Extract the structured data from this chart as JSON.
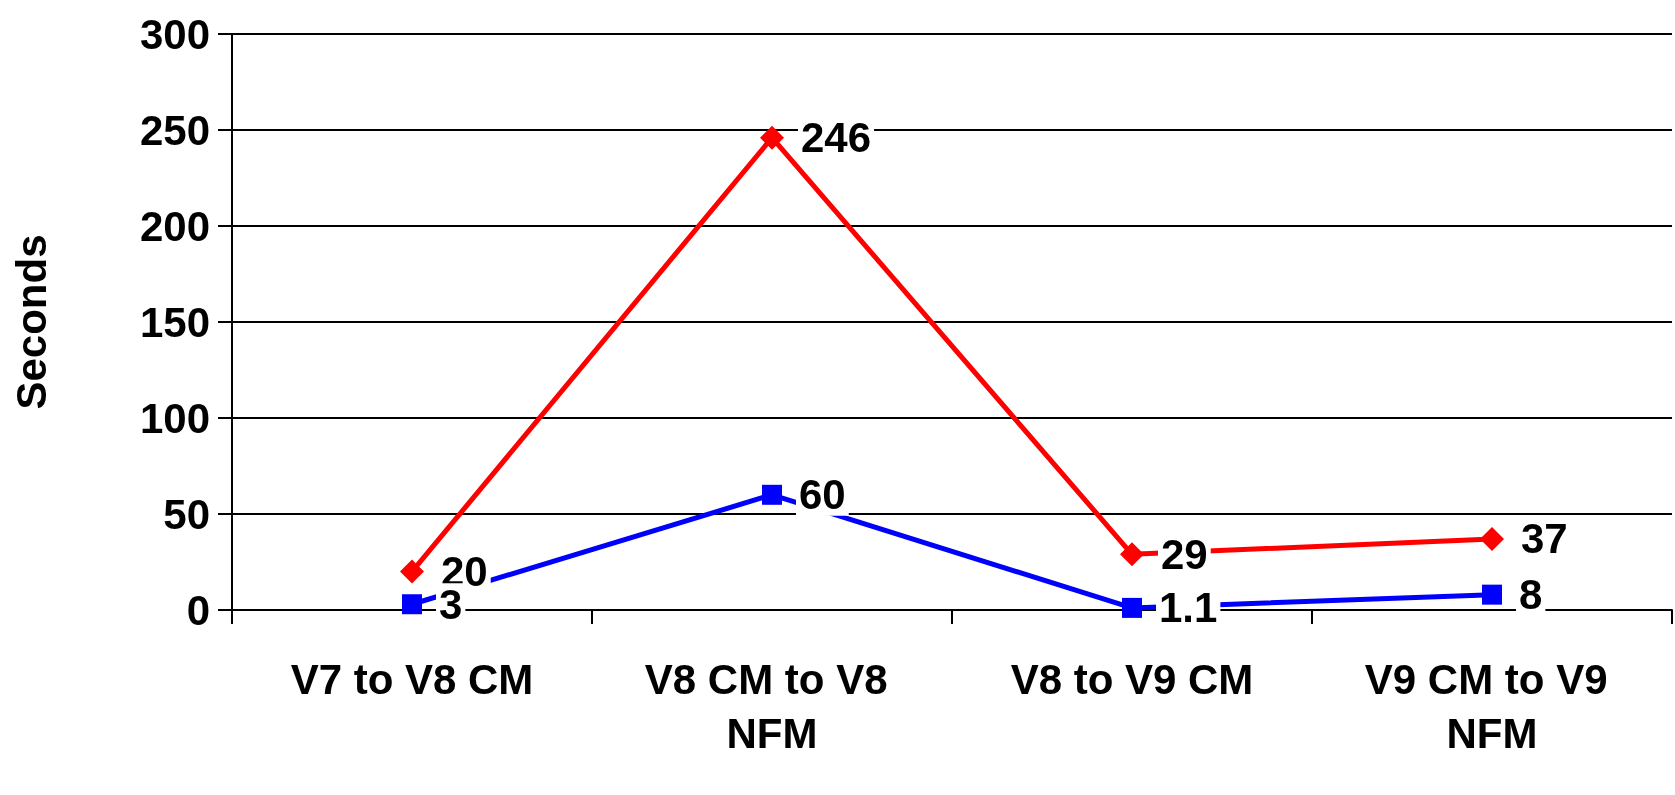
{
  "chart_data": {
    "type": "line",
    "ylabel": "Seconds",
    "categories": [
      "V7 to V8 CM",
      "V8 CM to V8 NFM",
      "V8 to V9 CM",
      "V9 CM to V9 NFM"
    ],
    "series": [
      {
        "color": "#ff0000",
        "marker": "diamond",
        "values": [
          20,
          246,
          29,
          37
        ]
      },
      {
        "color": "#0000ff",
        "marker": "square",
        "values": [
          3,
          60,
          1.1,
          8
        ]
      }
    ],
    "ylim": [
      0,
      300
    ],
    "yticks": [
      0,
      50,
      100,
      150,
      200,
      250,
      300
    ],
    "grid": "y",
    "data_labels": true,
    "line_style": "solid"
  }
}
